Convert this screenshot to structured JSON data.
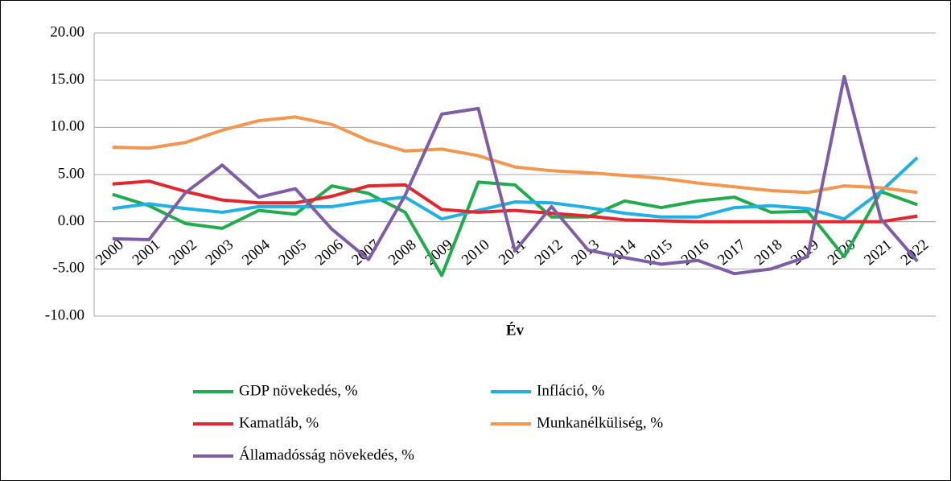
{
  "chart_data": {
    "type": "line",
    "x_label": "Év",
    "categories": [
      "2000",
      "2001",
      "2002",
      "2003",
      "2004",
      "2005",
      "2006",
      "2007",
      "2008",
      "2009",
      "2010",
      "2011",
      "2012",
      "2013",
      "2014",
      "2015",
      "2016",
      "2017",
      "2018",
      "2019",
      "2020",
      "2021",
      "2022"
    ],
    "series": [
      {
        "name": "GDP növekedés, %",
        "color": "#1fad4b",
        "values": [
          2.9,
          1.7,
          -0.2,
          -0.7,
          1.2,
          0.8,
          3.8,
          3.0,
          1.0,
          -5.7,
          4.2,
          3.9,
          0.5,
          0.5,
          2.2,
          1.5,
          2.2,
          2.6,
          1.0,
          1.1,
          -3.7,
          3.2,
          1.8
        ]
      },
      {
        "name": "Infláció, %",
        "color": "#1fb0e6",
        "values": [
          1.4,
          1.9,
          1.4,
          1.0,
          1.6,
          1.6,
          1.6,
          2.2,
          2.6,
          0.3,
          1.2,
          2.1,
          2.0,
          1.5,
          0.9,
          0.5,
          0.5,
          1.5,
          1.7,
          1.4,
          0.3,
          3.2,
          6.8
        ]
      },
      {
        "name": "Kamatláb, %",
        "color": "#e6242b",
        "values": [
          4.0,
          4.3,
          3.2,
          2.3,
          2.0,
          2.0,
          2.7,
          3.8,
          3.9,
          1.3,
          1.0,
          1.2,
          0.9,
          0.6,
          0.2,
          0.1,
          0.0,
          0.0,
          0.0,
          0.0,
          0.0,
          0.0,
          0.6
        ]
      },
      {
        "name": "Munkanélküliség, %",
        "color": "#f3964e",
        "values": [
          7.9,
          7.8,
          8.4,
          9.7,
          10.7,
          11.1,
          10.3,
          8.6,
          7.5,
          7.7,
          7.0,
          5.8,
          5.4,
          5.2,
          4.9,
          4.6,
          4.1,
          3.7,
          3.3,
          3.1,
          3.8,
          3.6,
          3.1
        ]
      },
      {
        "name": "Államadósság növekedés, %",
        "color": "#7d5ea6",
        "values": [
          -1.8,
          -1.9,
          3.1,
          6.0,
          2.6,
          3.5,
          -0.8,
          -4.0,
          2.8,
          11.4,
          12.0,
          -3.1,
          1.6,
          -3.0,
          -3.8,
          -4.5,
          -4.1,
          -5.5,
          -5.0,
          -3.7,
          15.4,
          0.3,
          -4.2
        ]
      }
    ],
    "ylim": [
      -10,
      20
    ],
    "yticks": [
      {
        "value": -10,
        "label": "-10.00"
      },
      {
        "value": -5,
        "label": "-5.00"
      },
      {
        "value": 0,
        "label": "0.00"
      },
      {
        "value": 5,
        "label": "5.00"
      },
      {
        "value": 10,
        "label": "10.00"
      },
      {
        "value": 15,
        "label": "15.00"
      },
      {
        "value": 20,
        "label": "20.00"
      }
    ],
    "grid": true,
    "legend": "bottom"
  }
}
